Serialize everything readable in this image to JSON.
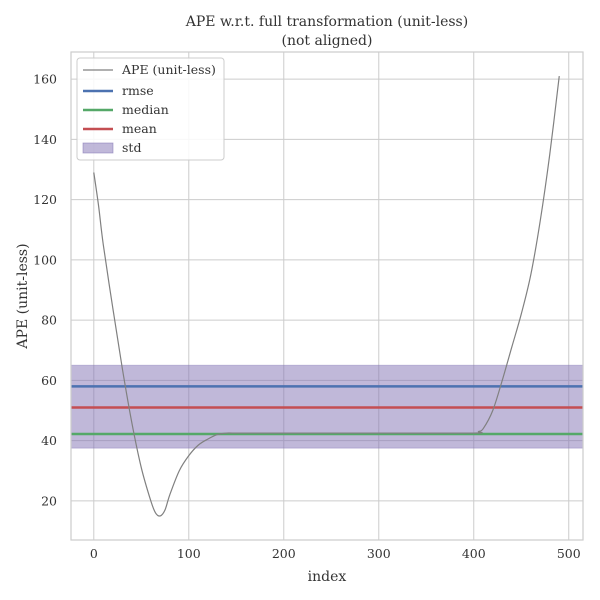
{
  "chart_data": {
    "type": "line",
    "title": "APE w.r.t. full transformation (unit-less)",
    "subtitle": "(not aligned)",
    "xlabel": "index",
    "ylabel": "APE (unit-less)",
    "xlim": [
      -24,
      515
    ],
    "ylim": [
      7,
      169
    ],
    "xticks": [
      0,
      100,
      200,
      300,
      400,
      500
    ],
    "yticks": [
      20,
      40,
      60,
      80,
      100,
      120,
      140,
      160
    ],
    "grid": true,
    "legend_position": "top-left",
    "series": [
      {
        "name": "APE (unit-less)",
        "color": "#808080",
        "x": [
          0,
          5,
          10,
          20,
          30,
          40,
          50,
          60,
          65,
          70,
          75,
          80,
          90,
          100,
          110,
          120,
          130,
          140,
          150,
          200,
          300,
          400,
          405,
          410,
          420,
          430,
          440,
          450,
          460,
          470,
          480,
          490
        ],
        "y": [
          129,
          118,
          105,
          84,
          64,
          46,
          31,
          20,
          16,
          15,
          17,
          22,
          30,
          35,
          38.5,
          40.5,
          42,
          42.5,
          42.5,
          42.5,
          42.5,
          42.5,
          43,
          44,
          50,
          60,
          71,
          82,
          95,
          113,
          135,
          161
        ]
      }
    ],
    "statistics": {
      "rmse": {
        "name": "rmse",
        "value": 58,
        "color": "#4c72b0"
      },
      "median": {
        "name": "median",
        "value": 42.2,
        "color": "#55a868"
      },
      "mean": {
        "name": "mean",
        "value": 51,
        "color": "#c44e52"
      },
      "std": {
        "name": "std",
        "range": [
          37.5,
          65
        ],
        "color": "#8172b3"
      }
    },
    "legend": [
      "APE (unit-less)",
      "rmse",
      "median",
      "mean",
      "std"
    ]
  }
}
